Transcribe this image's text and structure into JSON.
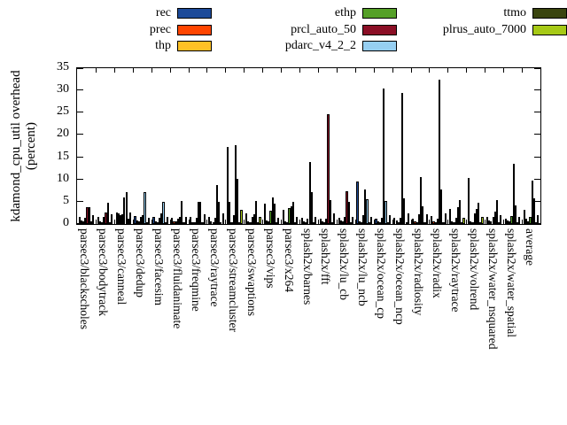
{
  "chart_data": {
    "type": "bar",
    "title": "",
    "ylabel_line1": "kdamond_cpu_util overhead",
    "ylabel_line2": "(percent)",
    "xlabel": "",
    "ylim": [
      0,
      35
    ],
    "yticks": [
      0,
      5,
      10,
      15,
      20,
      25,
      30,
      35
    ],
    "grid": false,
    "legend_position": "top-3-columns",
    "categories": [
      "parsec3/blackscholes",
      "parsec3/bodytrack",
      "parsec3/canneal",
      "parsec3/dedup",
      "parsec3/facesim",
      "parsec3/fluidanimate",
      "parsec3/freqmine",
      "parsec3/raytrace",
      "parsec3/streamcluster",
      "parsec3/swaptions",
      "parsec3/vips",
      "parsec3/x264",
      "splash2x/barnes",
      "splash2x/fft",
      "splash2x/lu_cb",
      "splash2x/lu_ncb",
      "splash2x/ocean_cp",
      "splash2x/ocean_ncp",
      "splash2x/radiosity",
      "splash2x/radix",
      "splash2x/raytrace",
      "splash2x/volrend",
      "splash2x/water_nsquared",
      "splash2x/water_spatial",
      "average"
    ],
    "series": [
      {
        "name": "rec",
        "color": "#1c4a99",
        "values": [
          1.7,
          1.7,
          2.6,
          1.8,
          1.6,
          1.5,
          1.6,
          1.7,
          17.4,
          2.3,
          4.5,
          3.1,
          1.5,
          1.3,
          1.5,
          9.6,
          1.3,
          1.5,
          1.3,
          1.8,
          3.3,
          10.3,
          1.6,
          1.2,
          3.1
        ]
      },
      {
        "name": "prec",
        "color": "#ff4500",
        "values": [
          0.9,
          0.7,
          2.3,
          0.9,
          0.6,
          0.7,
          0.5,
          0.6,
          4.9,
          0.7,
          0.8,
          0.7,
          0.6,
          0.7,
          0.9,
          0.7,
          0.7,
          0.8,
          0.7,
          0.6,
          0.6,
          0.6,
          0.8,
          0.8,
          1.2
        ]
      },
      {
        "name": "thp",
        "color": "#ffc125",
        "values": [
          0.7,
          0.5,
          1.9,
          0.7,
          0.5,
          0.6,
          0.5,
          0.5,
          0.5,
          0.5,
          0.6,
          0.5,
          0.5,
          0.5,
          0.6,
          0.5,
          0.5,
          0.5,
          0.5,
          0.5,
          0.5,
          0.5,
          0.6,
          0.6,
          0.7
        ]
      },
      {
        "name": "ethp",
        "color": "#55a028",
        "values": [
          1.4,
          1.6,
          2.1,
          1.6,
          1.4,
          1.3,
          1.4,
          1.4,
          1.9,
          1.7,
          3.0,
          3.5,
          1.2,
          1.3,
          1.6,
          1.9,
          1.5,
          1.5,
          2.1,
          1.2,
          1.4,
          2.3,
          1.6,
          1.8,
          1.7
        ]
      },
      {
        "name": "prcl_auto_50",
        "color": "#8b0f26",
        "values": [
          3.7,
          2.5,
          5.9,
          1.9,
          2.3,
          1.6,
          4.9,
          8.8,
          17.7,
          2.2,
          6.0,
          3.9,
          13.9,
          24.7,
          7.3,
          7.8,
          30.5,
          29.4,
          10.5,
          32.5,
          3.8,
          3.3,
          2.7,
          13.5,
          9.8
        ]
      },
      {
        "name": "pdarc_v4_2_2",
        "color": "#96cff2",
        "values": [
          3.7,
          4.8,
          7.1,
          7.1,
          4.9,
          5.2,
          4.9,
          5.0,
          10.1,
          5.1,
          4.6,
          5.0,
          7.1,
          5.3,
          4.9,
          5.6,
          5.1,
          5.7,
          3.9,
          7.7,
          5.3,
          4.8,
          5.3,
          4.2,
          5.8
        ]
      },
      {
        "name": "ttmo",
        "color": "#3a450f",
        "values": [
          0.7,
          0.5,
          1.3,
          0.5,
          0.4,
          0.4,
          0.4,
          0.4,
          0.4,
          0.4,
          0.4,
          0.4,
          0.4,
          0.4,
          0.4,
          0.4,
          0.4,
          0.4,
          0.4,
          0.4,
          0.4,
          0.4,
          0.4,
          0.4,
          0.5
        ]
      },
      {
        "name": "plrus_auto_7000",
        "color": "#a6c916",
        "values": [
          1.9,
          2.1,
          2.6,
          1.5,
          1.6,
          1.6,
          2.2,
          2.4,
          3.1,
          1.6,
          1.5,
          1.7,
          1.6,
          2.3,
          1.6,
          1.7,
          1.9,
          2.3,
          2.1,
          2.3,
          1.5,
          1.7,
          2.0,
          1.6,
          2.0
        ]
      }
    ]
  }
}
